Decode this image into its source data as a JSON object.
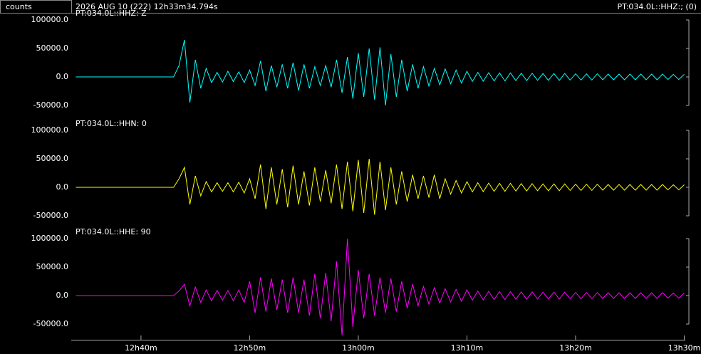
{
  "header": {
    "y_unit": "counts",
    "datetime": "2026 AUG 10 (222)  12h33m34.794s",
    "station": "PT:034.0L::HHZ:; (0)"
  },
  "chart_data": [
    {
      "type": "line",
      "xlim": [
        33.58,
        90.1
      ],
      "ylim": [
        -70000,
        110000
      ],
      "yticks": [
        {
          "value": -50000,
          "label": "-50000.0"
        },
        {
          "value": 0,
          "label": "0.0"
        },
        {
          "value": 50000,
          "label": "50000.0"
        },
        {
          "value": 100000,
          "label": "100000.0"
        }
      ],
      "x": [
        34,
        34.5,
        35,
        35.5,
        36,
        36.5,
        37,
        37.5,
        38,
        38.5,
        39,
        39.5,
        40,
        40.5,
        41,
        41.5,
        42,
        42.5,
        43,
        43.5,
        44,
        44.5,
        45,
        45.5,
        46,
        46.5,
        47,
        47.5,
        48,
        48.5,
        49,
        49.5,
        50,
        50.5,
        51,
        51.5,
        52,
        52.5,
        53,
        53.5,
        54,
        54.5,
        55,
        55.5,
        56,
        56.5,
        57,
        57.5,
        58,
        58.5,
        59,
        59.5,
        60,
        60.5,
        61,
        61.5,
        62,
        62.5,
        63,
        63.5,
        64,
        64.5,
        65,
        65.5,
        66,
        66.5,
        67,
        67.5,
        68,
        68.5,
        69,
        69.5,
        70,
        70.5,
        71,
        71.5,
        72,
        72.5,
        73,
        73.5,
        74,
        74.5,
        75,
        75.5,
        76,
        76.5,
        77,
        77.5,
        78,
        78.5,
        79,
        79.5,
        80,
        80.5,
        81,
        81.5,
        82,
        82.5,
        83,
        83.5,
        84,
        84.5,
        85,
        85.5,
        86,
        86.5,
        87,
        87.5,
        88,
        88.5,
        89,
        89.5,
        90
      ],
      "series": [
        {
          "name": "PT:034.0L::HHZ: Z",
          "color": "#00ffff",
          "values": [
            0,
            0,
            0,
            0,
            0,
            0,
            0,
            0,
            0,
            0,
            0,
            0,
            0,
            0,
            0,
            0,
            0,
            0,
            0,
            20000,
            65000,
            -45000,
            30000,
            -20000,
            15000,
            -10000,
            8000,
            -9000,
            10000,
            -8000,
            9000,
            -10000,
            12000,
            -15000,
            28000,
            -25000,
            20000,
            -18000,
            22000,
            -20000,
            25000,
            -24000,
            22000,
            -20000,
            18000,
            -15000,
            20000,
            -18000,
            30000,
            -28000,
            35000,
            -38000,
            42000,
            -35000,
            50000,
            -40000,
            52000,
            -50000,
            40000,
            -35000,
            30000,
            -25000,
            22000,
            -20000,
            18000,
            -16000,
            15000,
            -14000,
            14000,
            -12000,
            12000,
            -11000,
            10000,
            -8000,
            8000,
            -7500,
            7500,
            -7000,
            7000,
            -7000,
            7000,
            -6500,
            6500,
            -6500,
            6500,
            -6000,
            6000,
            -6000,
            6000,
            -6000,
            6000,
            -5500,
            5500,
            -5500,
            5500,
            -5500,
            5500,
            -5000,
            5000,
            -5000,
            5000,
            -5000,
            5000,
            -5000,
            5000,
            -5000,
            5000,
            -5000,
            5000,
            -4500,
            4500,
            -4500,
            4500
          ]
        }
      ]
    },
    {
      "type": "line",
      "xlim": [
        33.58,
        90.1
      ],
      "ylim": [
        -70000,
        110000
      ],
      "yticks": [
        {
          "value": -50000,
          "label": "-50000.0"
        },
        {
          "value": 0,
          "label": "0.0"
        },
        {
          "value": 50000,
          "label": "50000.0"
        },
        {
          "value": 100000,
          "label": "100000.0"
        }
      ],
      "x": [
        34,
        34.5,
        35,
        35.5,
        36,
        36.5,
        37,
        37.5,
        38,
        38.5,
        39,
        39.5,
        40,
        40.5,
        41,
        41.5,
        42,
        42.5,
        43,
        43.5,
        44,
        44.5,
        45,
        45.5,
        46,
        46.5,
        47,
        47.5,
        48,
        48.5,
        49,
        49.5,
        50,
        50.5,
        51,
        51.5,
        52,
        52.5,
        53,
        53.5,
        54,
        54.5,
        55,
        55.5,
        56,
        56.5,
        57,
        57.5,
        58,
        58.5,
        59,
        59.5,
        60,
        60.5,
        61,
        61.5,
        62,
        62.5,
        63,
        63.5,
        64,
        64.5,
        65,
        65.5,
        66,
        66.5,
        67,
        67.5,
        68,
        68.5,
        69,
        69.5,
        70,
        70.5,
        71,
        71.5,
        72,
        72.5,
        73,
        73.5,
        74,
        74.5,
        75,
        75.5,
        76,
        76.5,
        77,
        77.5,
        78,
        78.5,
        79,
        79.5,
        80,
        80.5,
        81,
        81.5,
        82,
        82.5,
        83,
        83.5,
        84,
        84.5,
        85,
        85.5,
        86,
        86.5,
        87,
        87.5,
        88,
        88.5,
        89,
        89.5,
        90
      ],
      "series": [
        {
          "name": "PT:034.0L::HHN: 0",
          "color": "#ffff00",
          "values": [
            0,
            0,
            0,
            0,
            0,
            0,
            0,
            0,
            0,
            0,
            0,
            0,
            0,
            0,
            0,
            0,
            0,
            0,
            0,
            15000,
            35000,
            -30000,
            20000,
            -15000,
            10000,
            -8000,
            8000,
            -7000,
            8000,
            -8000,
            9000,
            -10000,
            15000,
            -20000,
            40000,
            -38000,
            35000,
            -30000,
            32000,
            -35000,
            38000,
            -30000,
            28000,
            -32000,
            35000,
            -25000,
            30000,
            -28000,
            40000,
            -38000,
            45000,
            -42000,
            48000,
            -45000,
            50000,
            -48000,
            45000,
            -40000,
            35000,
            -30000,
            28000,
            -25000,
            22000,
            -20000,
            20000,
            -18000,
            22000,
            -20000,
            15000,
            -12000,
            12000,
            -10000,
            10000,
            -8000,
            8000,
            -7500,
            7500,
            -7000,
            7000,
            -7000,
            7000,
            -6500,
            6500,
            -6500,
            6500,
            -6000,
            6000,
            -6000,
            6000,
            -6000,
            6000,
            -5500,
            5500,
            -5500,
            5500,
            -5500,
            5500,
            -5000,
            5000,
            -5000,
            5000,
            -5000,
            5000,
            -5000,
            5000,
            -5000,
            5000,
            -5000,
            5000,
            -4500,
            4500,
            -4500,
            4500
          ]
        }
      ]
    },
    {
      "type": "line",
      "xlim": [
        33.58,
        90.1
      ],
      "ylim": [
        -70000,
        110000
      ],
      "yticks": [
        {
          "value": -50000,
          "label": "-50000.0"
        },
        {
          "value": 0,
          "label": "0.0"
        },
        {
          "value": 50000,
          "label": "50000.0"
        },
        {
          "value": 100000,
          "label": "100000.0"
        }
      ],
      "xticks": [
        {
          "value": 40,
          "label": "12h40m"
        },
        {
          "value": 50,
          "label": "12h50m"
        },
        {
          "value": 60,
          "label": "13h00m"
        },
        {
          "value": 70,
          "label": "13h10m"
        },
        {
          "value": 80,
          "label": "13h20m"
        },
        {
          "value": 90,
          "label": "13h30m"
        }
      ],
      "x": [
        34,
        34.5,
        35,
        35.5,
        36,
        36.5,
        37,
        37.5,
        38,
        38.5,
        39,
        39.5,
        40,
        40.5,
        41,
        41.5,
        42,
        42.5,
        43,
        43.5,
        44,
        44.5,
        45,
        45.5,
        46,
        46.5,
        47,
        47.5,
        48,
        48.5,
        49,
        49.5,
        50,
        50.5,
        51,
        51.5,
        52,
        52.5,
        53,
        53.5,
        54,
        54.5,
        55,
        55.5,
        56,
        56.5,
        57,
        57.5,
        58,
        58.5,
        59,
        59.5,
        60,
        60.5,
        61,
        61.5,
        62,
        62.5,
        63,
        63.5,
        64,
        64.5,
        65,
        65.5,
        66,
        66.5,
        67,
        67.5,
        68,
        68.5,
        69,
        69.5,
        70,
        70.5,
        71,
        71.5,
        72,
        72.5,
        73,
        73.5,
        74,
        74.5,
        75,
        75.5,
        76,
        76.5,
        77,
        77.5,
        78,
        78.5,
        79,
        79.5,
        80,
        80.5,
        81,
        81.5,
        82,
        82.5,
        83,
        83.5,
        84,
        84.5,
        85,
        85.5,
        86,
        86.5,
        87,
        87.5,
        88,
        88.5,
        89,
        89.5,
        90
      ],
      "series": [
        {
          "name": "PT:034.0L::HHE: 90",
          "color": "#ff00ff",
          "values": [
            0,
            0,
            0,
            0,
            0,
            0,
            0,
            0,
            0,
            0,
            0,
            0,
            0,
            0,
            0,
            0,
            0,
            0,
            0,
            8000,
            20000,
            -18000,
            15000,
            -12000,
            10000,
            -9000,
            9000,
            -8000,
            9000,
            -9000,
            10000,
            -12000,
            25000,
            -30000,
            32000,
            -28000,
            30000,
            -25000,
            28000,
            -30000,
            32000,
            -30000,
            28000,
            -35000,
            38000,
            -40000,
            40000,
            -45000,
            60000,
            -70000,
            100000,
            -55000,
            45000,
            -40000,
            38000,
            -35000,
            32000,
            -30000,
            30000,
            -28000,
            25000,
            -22000,
            20000,
            -18000,
            16000,
            -15000,
            14000,
            -13000,
            12000,
            -11000,
            11000,
            -10000,
            10000,
            -8000,
            8000,
            -7500,
            7500,
            -7000,
            7000,
            -7000,
            7000,
            -6500,
            6500,
            -6500,
            6500,
            -6000,
            6000,
            -6000,
            6000,
            -6000,
            6000,
            -5500,
            5500,
            -5500,
            5500,
            -5500,
            5500,
            -5000,
            5000,
            -5000,
            5000,
            -5000,
            5000,
            -5000,
            5000,
            -5000,
            5000,
            -5000,
            5000,
            -4500,
            4500,
            -4500,
            4500
          ]
        }
      ]
    }
  ]
}
